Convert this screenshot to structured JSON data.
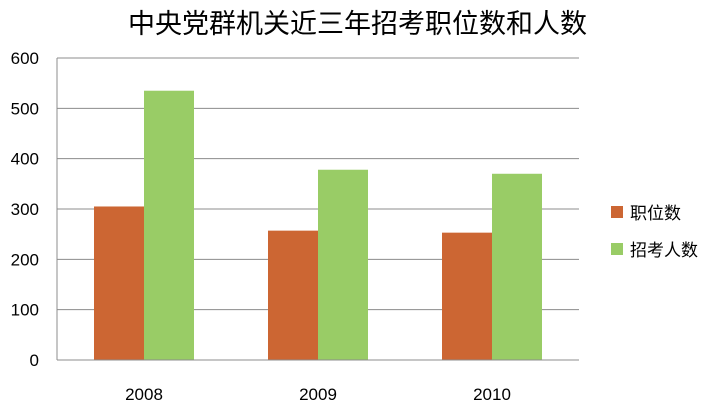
{
  "chart_data": {
    "type": "bar",
    "title": "中央党群机关近三年招考职位数和人数",
    "xlabel": "",
    "ylabel": "",
    "categories": [
      "2008",
      "2009",
      "2010"
    ],
    "series": [
      {
        "name": "职位数",
        "values": [
          305,
          257,
          253
        ],
        "color": "#CC6633"
      },
      {
        "name": "招考人数",
        "values": [
          535,
          378,
          370
        ],
        "color": "#99CC66"
      }
    ],
    "ylim": [
      0,
      600
    ],
    "yticks": [
      "0",
      "100",
      "200",
      "300",
      "400",
      "500",
      "600"
    ],
    "grid": true,
    "legend": "right"
  }
}
